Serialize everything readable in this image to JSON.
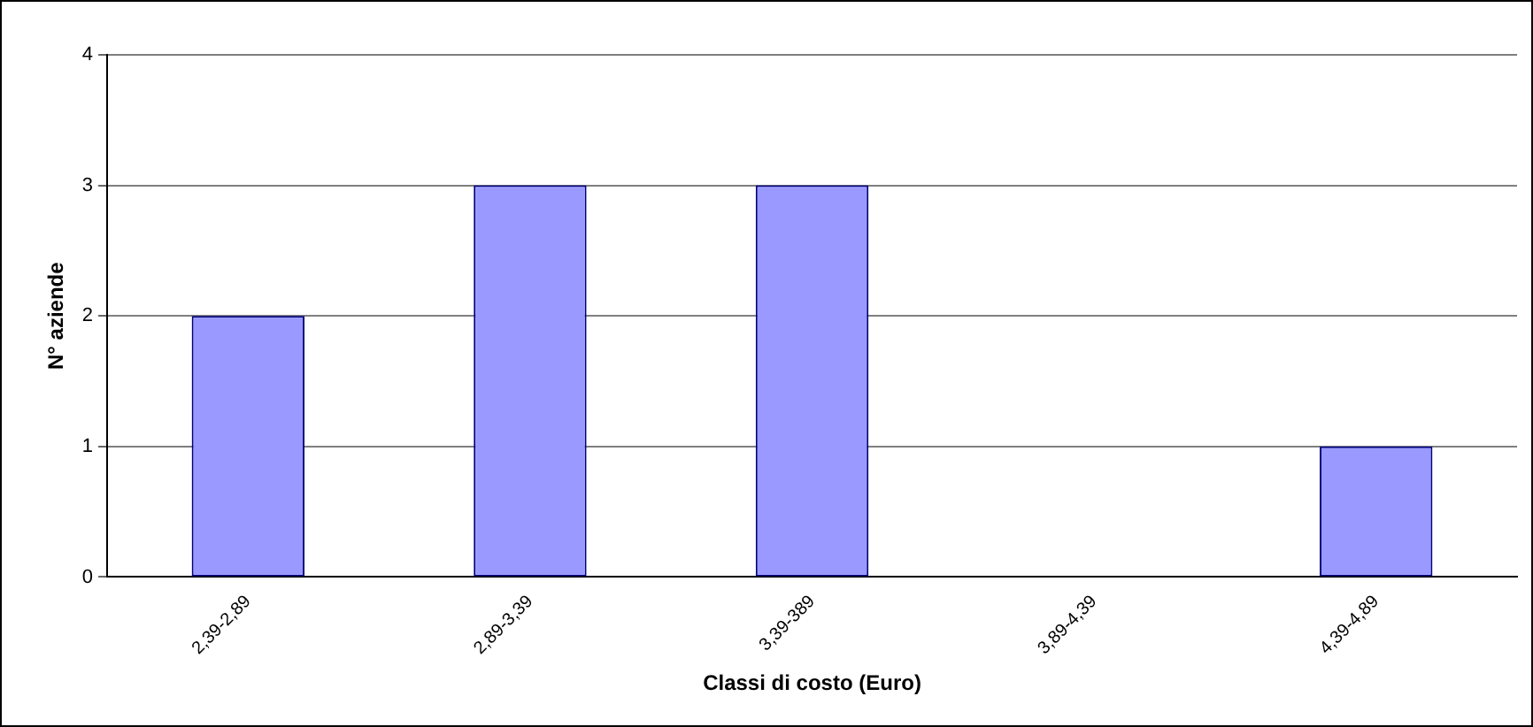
{
  "chart_data": {
    "type": "bar",
    "xlabel": "Classi di costo (Euro)",
    "ylabel": "N° aziende",
    "categories": [
      "2,39-2,89",
      "2,89-3,39",
      "3,39-389",
      "3,89-4,39",
      "4,39-4,89"
    ],
    "values": [
      2,
      3,
      3,
      0,
      1
    ],
    "color": "#9999ff",
    "ylim": [
      0,
      4
    ],
    "yticks": [
      0,
      1,
      2,
      3,
      4
    ],
    "grid": "y",
    "legend": false
  }
}
